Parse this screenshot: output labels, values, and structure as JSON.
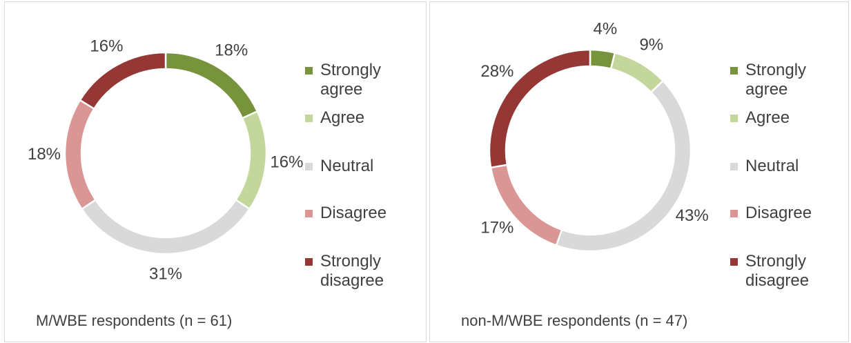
{
  "chart_data": [
    {
      "type": "donut",
      "title": "M/WBE respondents  (n = 61)",
      "categories": [
        "Strongly agree",
        "Agree",
        "Neutral",
        "Disagree",
        "Strongly disagree"
      ],
      "values": [
        18,
        16,
        31,
        18,
        16
      ],
      "value_labels": [
        "18%",
        "16%",
        "31%",
        "18%",
        "16%"
      ],
      "colors": [
        "#77933c",
        "#c3d69b",
        "#d9d9d9",
        "#d99694",
        "#953735"
      ]
    },
    {
      "type": "donut",
      "title": "non-M/WBE respondents  (n = 47)",
      "categories": [
        "Strongly agree",
        "Agree",
        "Neutral",
        "Disagree",
        "Strongly disagree"
      ],
      "values": [
        4,
        9,
        43,
        17,
        28
      ],
      "value_labels": [
        "4%",
        "9%",
        "43%",
        "17%",
        "28%"
      ],
      "colors": [
        "#77933c",
        "#c3d69b",
        "#d9d9d9",
        "#d99694",
        "#953735"
      ]
    }
  ]
}
